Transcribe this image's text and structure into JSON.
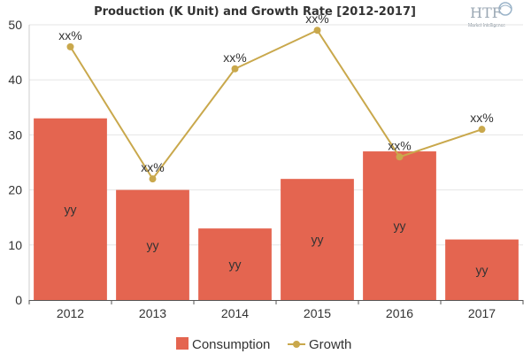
{
  "chart_data": {
    "type": "bar",
    "title": "Production (K Unit) and Growth Rate [2012-2017]",
    "categories": [
      "2012",
      "2013",
      "2014",
      "2015",
      "2016",
      "2017"
    ],
    "ylim": [
      0,
      50
    ],
    "yticks": [
      0,
      10,
      20,
      30,
      40,
      50
    ],
    "grid": true,
    "legend_position": "bottom",
    "series": [
      {
        "name": "Consumption",
        "type": "bar",
        "color": "#e46550",
        "values": [
          33,
          20,
          13,
          22,
          27,
          11
        ],
        "labels": [
          "yy",
          "yy",
          "yy",
          "yy",
          "yy",
          "yy"
        ]
      },
      {
        "name": "Growth",
        "type": "line",
        "color": "#c9a84c",
        "values": [
          46,
          22,
          42,
          49,
          26,
          31
        ],
        "labels": [
          "xx%",
          "xx%",
          "xx%",
          "xx%",
          "xx%",
          "xx%"
        ]
      }
    ]
  },
  "logo": {
    "text": "HTF",
    "subtext": "Market Intelligence"
  }
}
